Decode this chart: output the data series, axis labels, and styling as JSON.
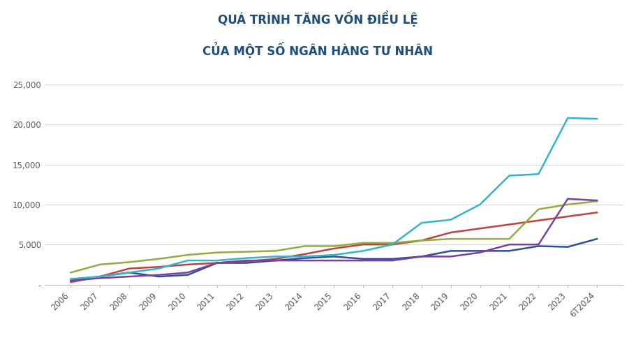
{
  "title_line1": "QUÁ TRÌNH TĂNG VỐN ĐIỀU LỆ",
  "title_line2": "CỦA MỘT SỐ NGÂN HÀNG TƯ NHÂN",
  "title_color": "#1F4E79",
  "background_color": "#FFFFFF",
  "x_labels": [
    "2006",
    "2007",
    "2008",
    "2009",
    "2010",
    "2011",
    "2012",
    "2013",
    "2014",
    "2015",
    "2016",
    "2017",
    "2018",
    "2019",
    "2020",
    "2021",
    "2022",
    "2023",
    "6T2024"
  ],
  "series": {
    "VBB": {
      "color": "#2E4F91",
      "values": [
        500,
        1000,
        1500,
        1000,
        1200,
        2700,
        2700,
        3000,
        3300,
        3500,
        3200,
        3200,
        3500,
        4200,
        4200,
        4200,
        4800,
        4700,
        5700
      ]
    },
    "BAB": {
      "color": "#C0413D",
      "values": [
        300,
        1000,
        2000,
        2200,
        2500,
        2700,
        2900,
        3200,
        3800,
        4500,
        5000,
        5000,
        5500,
        6500,
        7000,
        7500,
        8000,
        8500,
        9000
      ]
    },
    "ABB": {
      "color": "#8FAF3C",
      "values": [
        1500,
        2500,
        2800,
        3200,
        3700,
        4000,
        4100,
        4200,
        4800,
        4800,
        5200,
        5200,
        5500,
        5700,
        5700,
        5700,
        9400,
        10000,
        10400
      ]
    },
    "NAB": {
      "color": "#7B3F9E",
      "values": [
        500,
        800,
        1000,
        1200,
        1500,
        2700,
        3000,
        3000,
        3000,
        3000,
        3000,
        3000,
        3500,
        3500,
        4000,
        5000,
        5000,
        10700,
        10500
      ]
    },
    "OCB": {
      "color": "#31B6C8",
      "values": [
        700,
        1000,
        1500,
        2000,
        3000,
        3000,
        3300,
        3500,
        3500,
        3700,
        4200,
        5000,
        7700,
        8100,
        10000,
        13600,
        13800,
        20800,
        20700
      ]
    }
  },
  "ylim": [
    0,
    26000
  ],
  "yticks": [
    0,
    5000,
    10000,
    15000,
    20000,
    25000
  ],
  "ytick_labels": [
    "-",
    "5,000",
    "10,000",
    "15,000",
    "20,000",
    "25,000"
  ],
  "grid_color": "#D9D9D9",
  "axis_color": "#BFBFBF",
  "tick_label_color": "#595959",
  "legend_color": "#1F4E79"
}
